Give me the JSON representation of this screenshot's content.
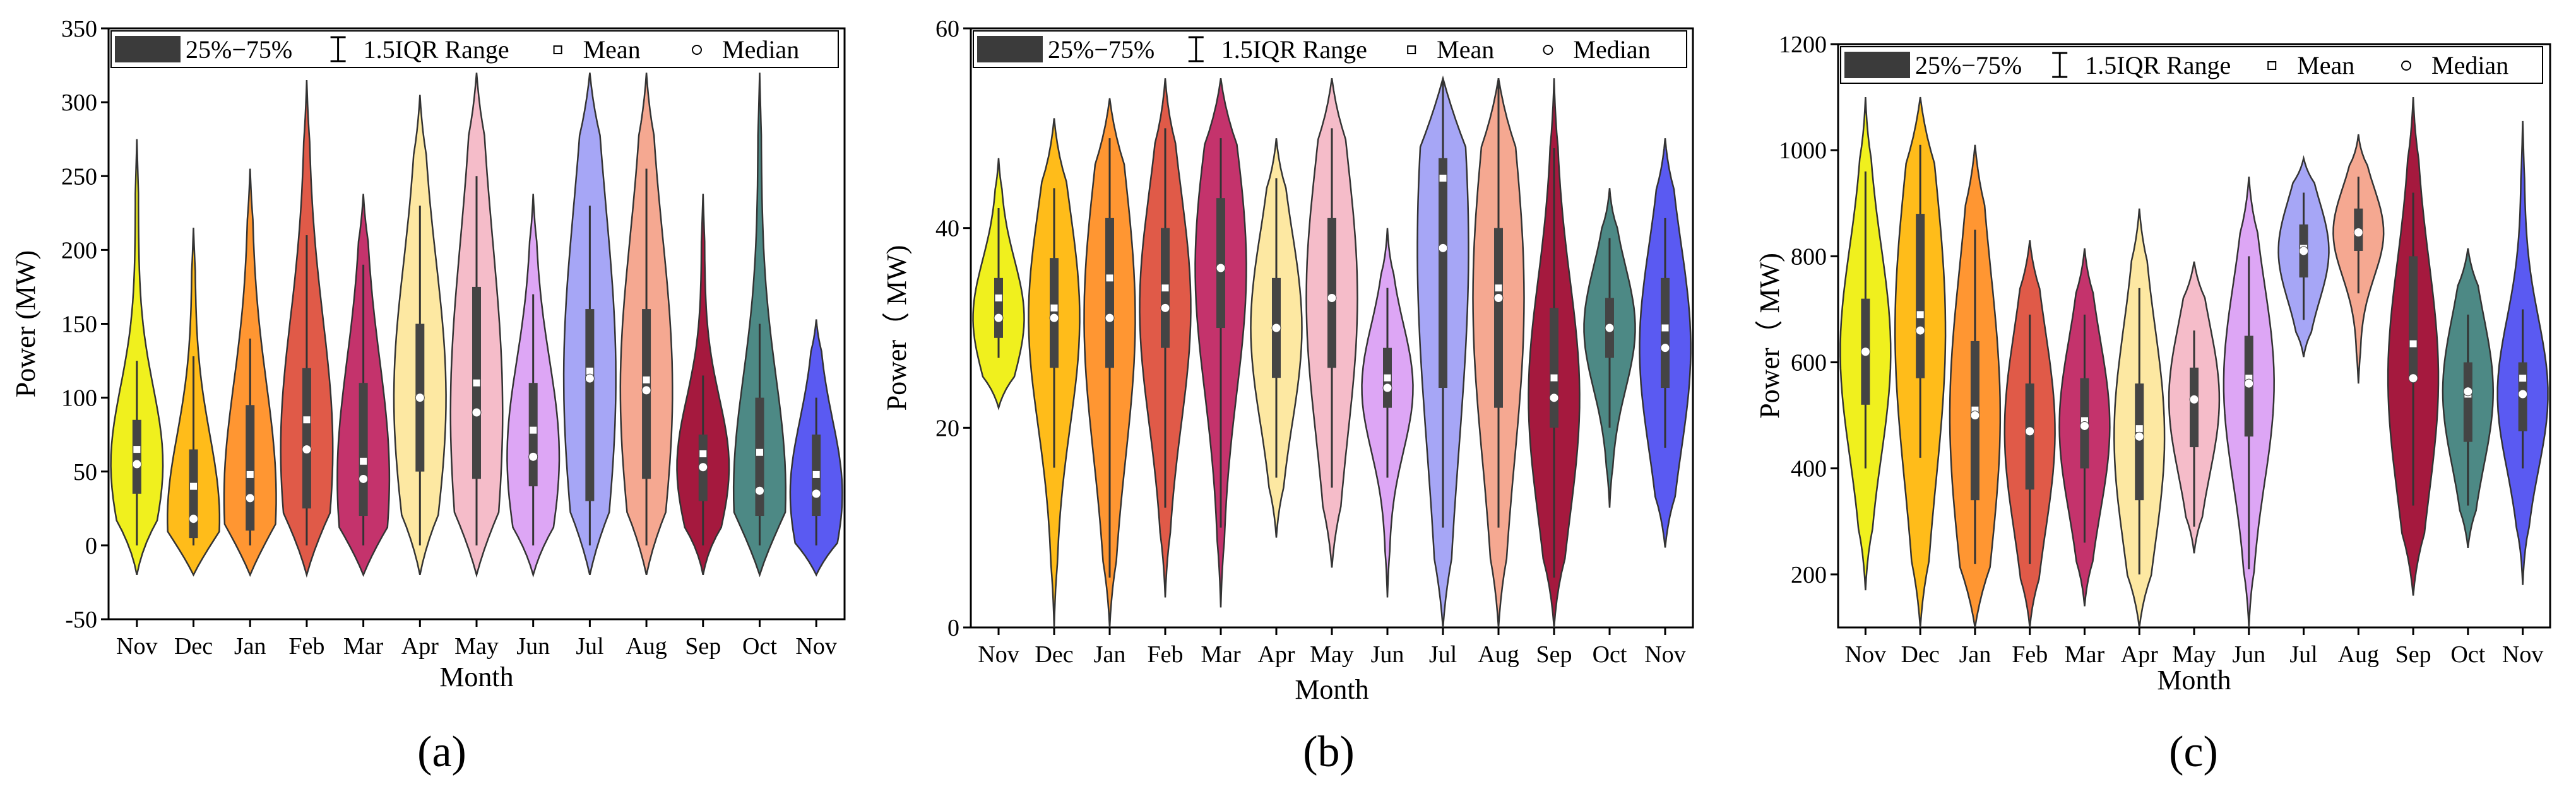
{
  "legend": {
    "box": "25%−75%",
    "range": "1.5IQR Range",
    "mean": "Mean",
    "median": "Median"
  },
  "colors": [
    "#f0f01e",
    "#ffbc1a",
    "#ff9632",
    "#e05a48",
    "#c4336c",
    "#fde8a2",
    "#f5bcc9",
    "#dda6f5",
    "#a6a6f6",
    "#f5a891",
    "#a5193e",
    "#4d8985",
    "#5a5af2"
  ],
  "chart_data": [
    {
      "type": "violin",
      "panel_label": "(a)",
      "xlabel": "Month",
      "ylabel": "Power (MW)",
      "ylim": [
        -50,
        350
      ],
      "yticks": [
        "-50",
        "0",
        "50",
        "100",
        "150",
        "200",
        "250",
        "300",
        "350"
      ],
      "categories": [
        "Nov",
        "Dec",
        "Jan",
        "Feb",
        "Mar",
        "Apr",
        "May",
        "Jun",
        "Jul",
        "Aug",
        "Sep",
        "Oct",
        "Nov"
      ],
      "min": [
        -20,
        -20,
        -20,
        -20,
        -20,
        -20,
        -20,
        -20,
        -20,
        -20,
        -20,
        -20,
        -20
      ],
      "max": [
        275,
        215,
        255,
        315,
        238,
        305,
        320,
        238,
        320,
        320,
        238,
        320,
        153
      ],
      "q1": [
        35,
        5,
        10,
        25,
        20,
        50,
        45,
        40,
        30,
        45,
        30,
        20,
        20
      ],
      "q3": [
        85,
        65,
        95,
        120,
        110,
        150,
        175,
        110,
        160,
        160,
        75,
        100,
        75
      ],
      "median": [
        55,
        18,
        32,
        65,
        45,
        100,
        90,
        60,
        113,
        105,
        53,
        37,
        35
      ],
      "mean": [
        65,
        40,
        48,
        85,
        57,
        100,
        110,
        78,
        118,
        112,
        62,
        63,
        48
      ],
      "wlow": [
        0,
        0,
        0,
        0,
        0,
        0,
        0,
        0,
        0,
        0,
        0,
        0,
        0
      ],
      "whigh": [
        125,
        128,
        140,
        210,
        190,
        230,
        250,
        170,
        230,
        255,
        115,
        150,
        100
      ]
    },
    {
      "type": "violin",
      "panel_label": "(b)",
      "xlabel": "Month",
      "ylabel": "Power（ MW)",
      "ylim": [
        0,
        60
      ],
      "yticks": [
        "0",
        "20",
        "40",
        "60"
      ],
      "categories": [
        "Nov",
        "Dec",
        "Jan",
        "Feb",
        "Mar",
        "Apr",
        "May",
        "Jun",
        "Jul",
        "Aug",
        "Sep",
        "Oct",
        "Nov"
      ],
      "min": [
        22,
        0,
        0,
        3,
        2,
        9,
        6,
        3,
        0,
        0,
        0,
        12,
        8
      ],
      "max": [
        47,
        51,
        53,
        55,
        55,
        49,
        55,
        40,
        55,
        55,
        55,
        44,
        49
      ],
      "q1": [
        29,
        26,
        26,
        28,
        30,
        25,
        26,
        22,
        24,
        22,
        20,
        27,
        24
      ],
      "q3": [
        35,
        37,
        41,
        40,
        43,
        35,
        41,
        28,
        47,
        40,
        32,
        33,
        35
      ],
      "median": [
        31,
        31,
        31,
        32,
        36,
        30,
        33,
        24,
        38,
        33,
        23,
        30,
        28
      ],
      "mean": [
        33,
        32,
        35,
        34,
        36,
        30,
        33,
        25,
        45,
        34,
        25,
        30,
        30
      ],
      "wlow": [
        27,
        16,
        5,
        12,
        10,
        15,
        14,
        15,
        10,
        10,
        5,
        20,
        18
      ],
      "whigh": [
        42,
        44,
        49,
        50,
        49,
        45,
        50,
        34,
        55,
        55,
        48,
        39,
        41
      ]
    },
    {
      "type": "violin",
      "panel_label": "(c)",
      "xlabel": "Month",
      "ylabel": "Power（ MW)",
      "ylim": [
        100,
        1200
      ],
      "yticks": [
        "200",
        "400",
        "600",
        "800",
        "1000",
        "1200"
      ],
      "categories": [
        "Nov",
        "Dec",
        "Jan",
        "Feb",
        "Mar",
        "Apr",
        "May",
        "Jun",
        "Jul",
        "Aug",
        "Sep",
        "Oct",
        "Nov"
      ],
      "min": [
        170,
        100,
        100,
        100,
        140,
        100,
        240,
        100,
        610,
        560,
        160,
        250,
        180
      ],
      "max": [
        1100,
        1100,
        1010,
        830,
        815,
        890,
        790,
        950,
        985,
        1030,
        1100,
        815,
        1055
      ],
      "q1": [
        520,
        570,
        340,
        360,
        400,
        340,
        440,
        460,
        760,
        810,
        570,
        450,
        470
      ],
      "q3": [
        720,
        880,
        640,
        560,
        570,
        560,
        590,
        650,
        860,
        890,
        800,
        600,
        600
      ],
      "median": [
        620,
        660,
        500,
        470,
        480,
        460,
        530,
        560,
        810,
        845,
        570,
        545,
        540
      ],
      "mean": [
        620,
        690,
        510,
        470,
        490,
        475,
        530,
        570,
        815,
        845,
        635,
        540,
        570
      ],
      "wlow": [
        400,
        420,
        220,
        220,
        260,
        200,
        290,
        210,
        680,
        730,
        330,
        330,
        400
      ],
      "whigh": [
        960,
        1010,
        850,
        690,
        690,
        740,
        660,
        800,
        920,
        950,
        920,
        690,
        700
      ]
    }
  ]
}
